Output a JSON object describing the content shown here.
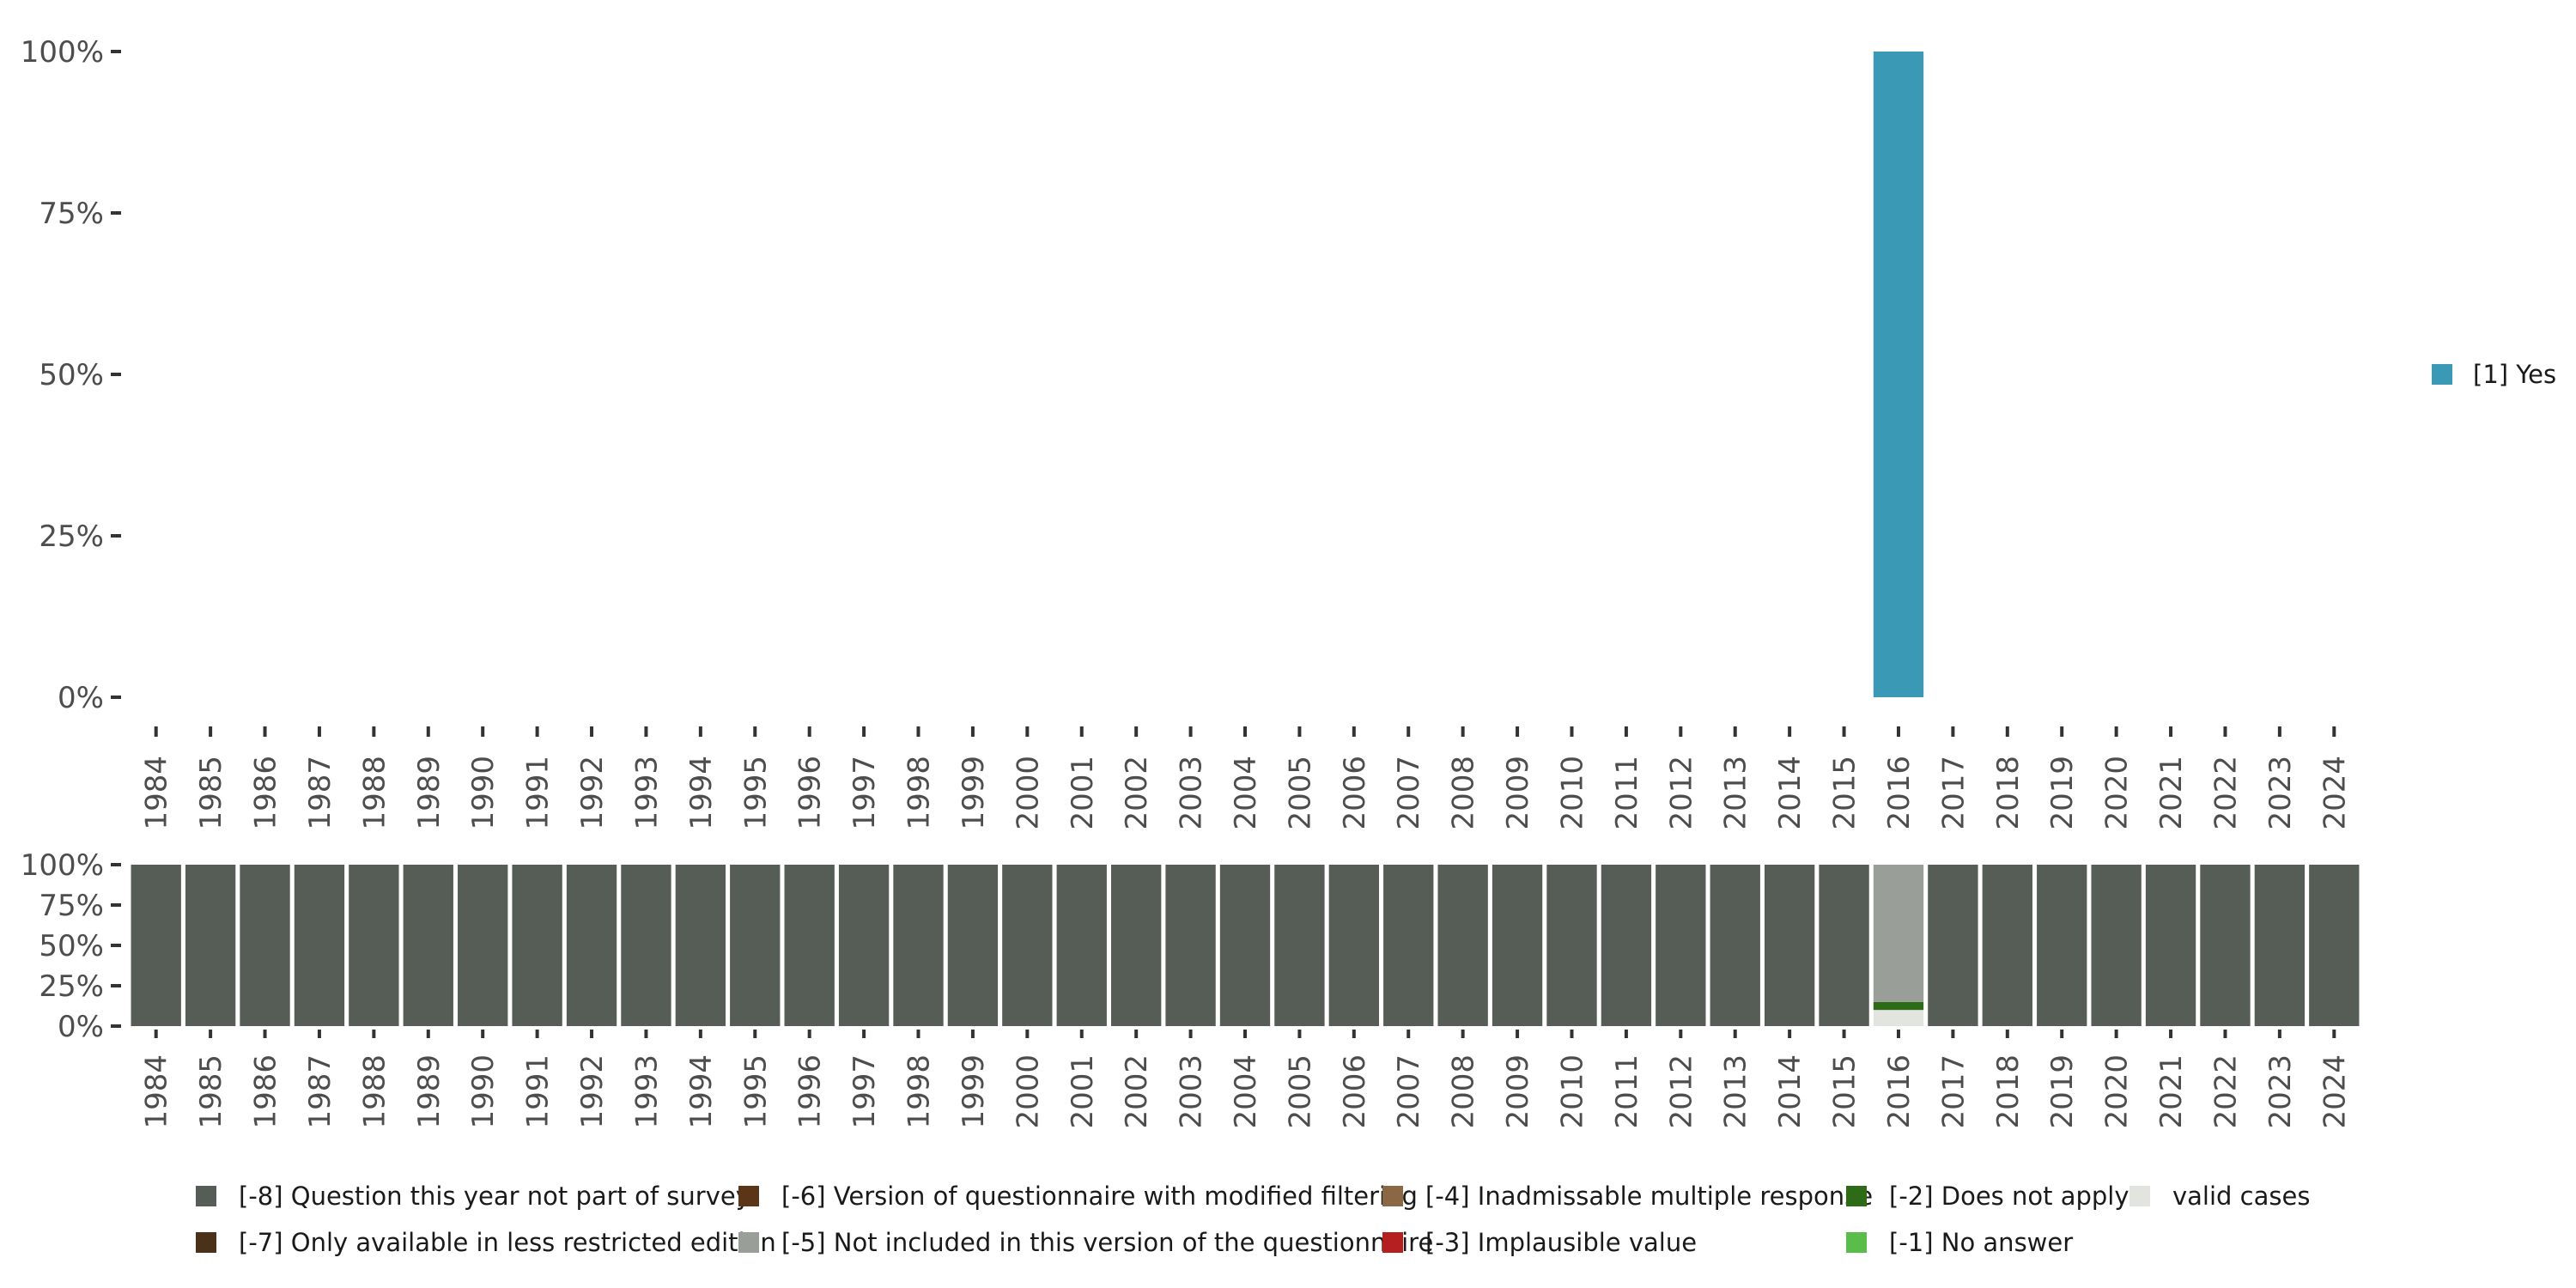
{
  "chart_data": [
    {
      "type": "bar",
      "name": "main-chart",
      "title": "",
      "xlabel": "",
      "ylabel": "",
      "ylim": [
        0,
        100
      ],
      "y_ticks": [
        "0%",
        "25%",
        "50%",
        "75%",
        "100%"
      ],
      "categories": [
        "1984",
        "1985",
        "1986",
        "1987",
        "1988",
        "1989",
        "1990",
        "1991",
        "1992",
        "1993",
        "1994",
        "1995",
        "1996",
        "1997",
        "1998",
        "1999",
        "2000",
        "2001",
        "2002",
        "2003",
        "2004",
        "2005",
        "2006",
        "2007",
        "2008",
        "2009",
        "2010",
        "2011",
        "2012",
        "2013",
        "2014",
        "2015",
        "2016",
        "2017",
        "2018",
        "2019",
        "2020",
        "2021",
        "2022",
        "2023",
        "2024"
      ],
      "series": [
        {
          "name": "[1] Yes",
          "color": "#3a9ab5",
          "values": [
            null,
            null,
            null,
            null,
            null,
            null,
            null,
            null,
            null,
            null,
            null,
            null,
            null,
            null,
            null,
            null,
            null,
            null,
            null,
            null,
            null,
            null,
            null,
            null,
            null,
            null,
            null,
            null,
            null,
            null,
            null,
            null,
            100,
            null,
            null,
            null,
            null,
            null,
            null,
            null,
            null
          ]
        }
      ],
      "legend": {
        "position": "right",
        "entries": [
          {
            "label": "[1] Yes",
            "color": "#3a9ab5"
          }
        ]
      }
    },
    {
      "type": "bar",
      "stacked": true,
      "name": "missing-values-chart",
      "ylim": [
        0,
        100
      ],
      "y_ticks": [
        "0%",
        "25%",
        "50%",
        "75%",
        "100%"
      ],
      "categories": [
        "1984",
        "1985",
        "1986",
        "1987",
        "1988",
        "1989",
        "1990",
        "1991",
        "1992",
        "1993",
        "1994",
        "1995",
        "1996",
        "1997",
        "1998",
        "1999",
        "2000",
        "2001",
        "2002",
        "2003",
        "2004",
        "2005",
        "2006",
        "2007",
        "2008",
        "2009",
        "2010",
        "2011",
        "2012",
        "2013",
        "2014",
        "2015",
        "2016",
        "2017",
        "2018",
        "2019",
        "2020",
        "2021",
        "2022",
        "2023",
        "2024"
      ],
      "stack_order": [
        "valid cases",
        "[-2] Does not apply",
        "[-5] Not included in this version of the questionnaire",
        "[-8] Question this year not part of survey"
      ],
      "series": [
        {
          "name": "[-8] Question this year not part of survey",
          "color": "#565c56",
          "values": [
            100,
            100,
            100,
            100,
            100,
            100,
            100,
            100,
            100,
            100,
            100,
            100,
            100,
            100,
            100,
            100,
            100,
            100,
            100,
            100,
            100,
            100,
            100,
            100,
            100,
            100,
            100,
            100,
            100,
            100,
            100,
            100,
            0,
            100,
            100,
            100,
            100,
            100,
            100,
            100,
            100
          ]
        },
        {
          "name": "[-5] Not included in this version of the questionnaire",
          "color": "#9a9e98",
          "values": [
            0,
            0,
            0,
            0,
            0,
            0,
            0,
            0,
            0,
            0,
            0,
            0,
            0,
            0,
            0,
            0,
            0,
            0,
            0,
            0,
            0,
            0,
            0,
            0,
            0,
            0,
            0,
            0,
            0,
            0,
            0,
            0,
            85,
            0,
            0,
            0,
            0,
            0,
            0,
            0,
            0
          ]
        },
        {
          "name": "[-2] Does not apply",
          "color": "#2e6b17",
          "values": [
            0,
            0,
            0,
            0,
            0,
            0,
            0,
            0,
            0,
            0,
            0,
            0,
            0,
            0,
            0,
            0,
            0,
            0,
            0,
            0,
            0,
            0,
            0,
            0,
            0,
            0,
            0,
            0,
            0,
            0,
            0,
            0,
            5,
            0,
            0,
            0,
            0,
            0,
            0,
            0,
            0
          ]
        },
        {
          "name": "valid cases",
          "color": "#e2e4e0",
          "values": [
            0,
            0,
            0,
            0,
            0,
            0,
            0,
            0,
            0,
            0,
            0,
            0,
            0,
            0,
            0,
            0,
            0,
            0,
            0,
            0,
            0,
            0,
            0,
            0,
            0,
            0,
            0,
            0,
            0,
            0,
            0,
            0,
            10,
            0,
            0,
            0,
            0,
            0,
            0,
            0,
            0
          ]
        }
      ],
      "legend": {
        "position": "bottom",
        "rows": [
          [
            {
              "label": "[-8] Question this year not part of survey",
              "color": "#565c56"
            },
            {
              "label": "[-6] Version of questionnaire with modified filtering",
              "color": "#5a3517"
            },
            {
              "label": "[-4] Inadmissable multiple response",
              "color": "#8b6844"
            },
            {
              "label": "[-2] Does not apply",
              "color": "#2e6b17"
            },
            {
              "label": "valid cases",
              "color": "#e2e4e0"
            }
          ],
          [
            {
              "label": "[-7] Only available in less restricted edition",
              "color": "#4a3119"
            },
            {
              "label": "[-5] Not included in this version of the questionnaire",
              "color": "#9a9e98"
            },
            {
              "label": "[-3] Implausible value",
              "color": "#b51f1f"
            },
            {
              "label": "[-1] No answer",
              "color": "#5abd4a"
            }
          ]
        ]
      }
    }
  ]
}
